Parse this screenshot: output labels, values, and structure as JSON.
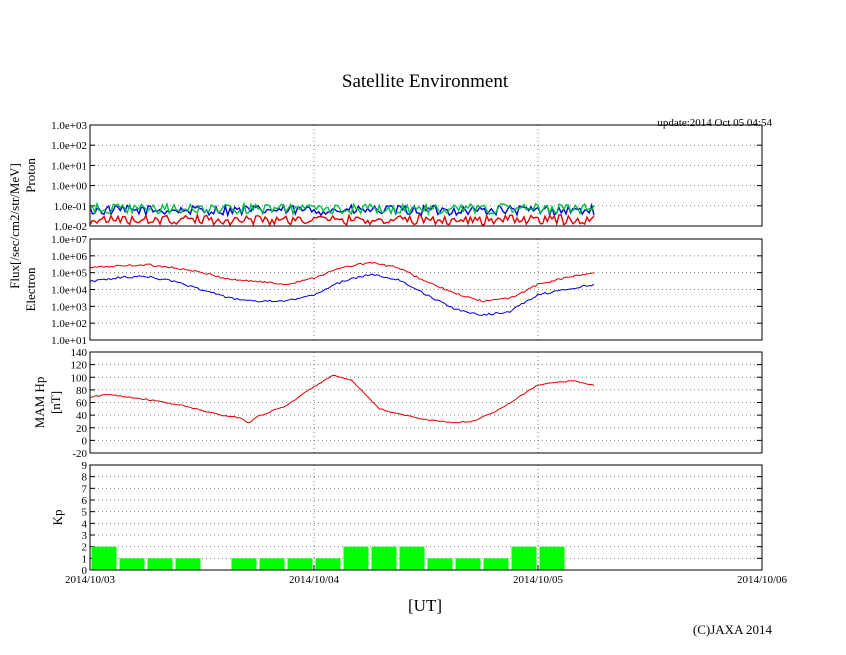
{
  "title": "Satellite Environment",
  "update": "update:2014 Oct 05 04:54",
  "copyright": "(C)JAXA 2014",
  "xlabel": "[UT]",
  "flux_label": "Flux[/sec/cm2/str/MeV]",
  "colors": {
    "red": "#e00000",
    "blue": "#0000e0",
    "green": "#00c040",
    "kp_bar": "#00ff00",
    "grid": "#808080"
  },
  "chart_data": [
    {
      "id": "proton",
      "type": "line",
      "ylabel": "Proton",
      "yscale": "log",
      "ylim": [
        0.01,
        1000
      ],
      "yticks": [
        "1.0e-02",
        "1.0e-01",
        "1.0e+00",
        "1.0e+01",
        "1.0e+02",
        "1.0e+03"
      ],
      "xlim": [
        "2014/10/03 00:00",
        "2014/10/06 00:00"
      ],
      "grid": true,
      "series": [
        {
          "color": "#0000e0",
          "x": [
            "2014/10/03 00:00",
            "2014/10/05 06:00"
          ],
          "y": [
            0.06,
            0.06
          ]
        },
        {
          "color": "#00c040",
          "x": [
            "2014/10/03 00:00",
            "2014/10/05 06:00"
          ],
          "y": [
            0.07,
            0.07
          ]
        },
        {
          "color": "#e00000",
          "x": [
            "2014/10/03 00:00",
            "2014/10/05 06:00"
          ],
          "y": [
            0.02,
            0.02
          ]
        }
      ]
    },
    {
      "id": "electron",
      "type": "line",
      "ylabel": "Electron",
      "yscale": "log",
      "ylim": [
        10,
        10000000
      ],
      "yticks": [
        "1.0e+01",
        "1.0e+02",
        "1.0e+03",
        "1.0e+04",
        "1.0e+05",
        "1.0e+06",
        "1.0e+07"
      ],
      "xlim": [
        "2014/10/03 00:00",
        "2014/10/06 00:00"
      ],
      "grid": true,
      "series": [
        {
          "color": "#e00000",
          "x": [
            "2014/10/03 00:00",
            "2014/10/03 03:00",
            "2014/10/03 06:00",
            "2014/10/03 09:00",
            "2014/10/03 12:00",
            "2014/10/03 15:00",
            "2014/10/03 18:00",
            "2014/10/03 21:00",
            "2014/10/04 00:00",
            "2014/10/04 03:00",
            "2014/10/04 06:00",
            "2014/10/04 09:00",
            "2014/10/04 12:00",
            "2014/10/04 15:00",
            "2014/10/04 18:00",
            "2014/10/04 21:00",
            "2014/10/05 00:00",
            "2014/10/05 03:00",
            "2014/10/05 06:00"
          ],
          "y": [
            200000,
            250000,
            300000,
            200000,
            100000,
            40000,
            30000,
            20000,
            50000,
            200000,
            400000,
            200000,
            30000,
            6000,
            2000,
            3000,
            20000,
            50000,
            100000
          ]
        },
        {
          "color": "#0000e0",
          "x": [
            "2014/10/03 00:00",
            "2014/10/03 03:00",
            "2014/10/03 06:00",
            "2014/10/03 09:00",
            "2014/10/03 12:00",
            "2014/10/03 15:00",
            "2014/10/03 18:00",
            "2014/10/03 21:00",
            "2014/10/04 00:00",
            "2014/10/04 03:00",
            "2014/10/04 06:00",
            "2014/10/04 09:00",
            "2014/10/04 12:00",
            "2014/10/04 15:00",
            "2014/10/04 18:00",
            "2014/10/04 21:00",
            "2014/10/05 00:00",
            "2014/10/05 03:00",
            "2014/10/05 06:00"
          ],
          "y": [
            30000,
            50000,
            60000,
            30000,
            10000,
            3000,
            2000,
            2000,
            5000,
            30000,
            80000,
            40000,
            5000,
            700,
            300,
            500,
            5000,
            10000,
            20000
          ]
        }
      ]
    },
    {
      "id": "mam_hp",
      "type": "line",
      "ylabel": "MAM Hp [nT]",
      "ylim": [
        -20,
        140
      ],
      "yticks": [
        "-20",
        "0",
        "20",
        "40",
        "60",
        "80",
        "100",
        "120",
        "140"
      ],
      "xlim": [
        "2014/10/03 00:00",
        "2014/10/06 00:00"
      ],
      "grid": true,
      "series": [
        {
          "color": "#e00000",
          "x": [
            "2014/10/03 00:00",
            "2014/10/03 02:00",
            "2014/10/03 06:00",
            "2014/10/03 10:00",
            "2014/10/03 14:00",
            "2014/10/03 16:00",
            "2014/10/03 17:00",
            "2014/10/03 18:00",
            "2014/10/03 21:00",
            "2014/10/04 00:00",
            "2014/10/04 02:00",
            "2014/10/04 04:00",
            "2014/10/04 07:00",
            "2014/10/04 09:00",
            "2014/10/04 12:00",
            "2014/10/04 15:00",
            "2014/10/04 17:00",
            "2014/10/04 20:00",
            "2014/10/05 00:00",
            "2014/10/05 04:00",
            "2014/10/05 05:00",
            "2014/10/05 06:00"
          ],
          "y": [
            68,
            73,
            65,
            55,
            40,
            36,
            28,
            38,
            55,
            85,
            103,
            95,
            50,
            42,
            33,
            28,
            30,
            50,
            88,
            95,
            90,
            87
          ]
        }
      ]
    },
    {
      "id": "kp",
      "type": "bar",
      "ylabel": "Kp",
      "ylim": [
        0,
        9
      ],
      "yticks": [
        "0",
        "1",
        "2",
        "3",
        "4",
        "5",
        "6",
        "7",
        "8",
        "9"
      ],
      "xlim": [
        "2014/10/03 00:00",
        "2014/10/06 00:00"
      ],
      "grid": true,
      "bar_width_hours": 3,
      "x": [
        "2014/10/03 00:00",
        "2014/10/03 03:00",
        "2014/10/03 06:00",
        "2014/10/03 09:00",
        "2014/10/03 12:00",
        "2014/10/03 15:00",
        "2014/10/03 18:00",
        "2014/10/03 21:00",
        "2014/10/04 00:00",
        "2014/10/04 03:00",
        "2014/10/04 06:00",
        "2014/10/04 09:00",
        "2014/10/04 12:00",
        "2014/10/04 15:00",
        "2014/10/04 18:00",
        "2014/10/04 21:00",
        "2014/10/05 00:00"
      ],
      "values": [
        2,
        1,
        1,
        1,
        0,
        1,
        1,
        1,
        1,
        2,
        2,
        2,
        1,
        1,
        1,
        2,
        2
      ],
      "xticks": [
        "2014/10/03",
        "2014/10/04",
        "2014/10/05",
        "2014/10/06"
      ]
    }
  ]
}
